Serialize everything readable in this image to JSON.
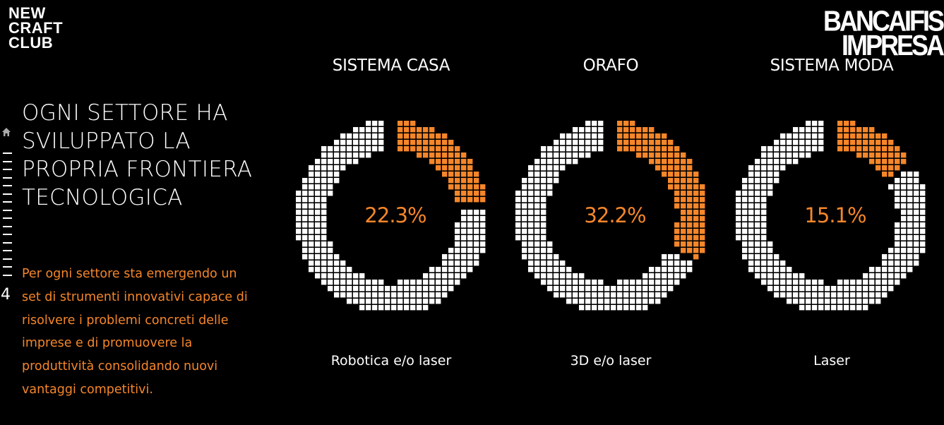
{
  "branding": {
    "left_logo_lines": [
      "NEW",
      "CRAFT",
      "CLUB"
    ],
    "right_logo_lines": [
      "BANCAIFIS",
      "IMPRESA"
    ]
  },
  "nav": {
    "page_number": "4"
  },
  "headline": "OGNI SETTORE HA SVILUPPATO LA PROPRIA FRONTIERA TECNOLOGICA",
  "description": "Per ogni settore sta emergendo un set di strumenti innovativi capace di risolvere i problemi concreti delle imprese e di promuovere la produttività consolidando nuovi vantaggi competitivi.",
  "colors": {
    "accent": "#f5862a",
    "ring_white": "#ffffff",
    "background": "#000000"
  },
  "chart_data": [
    {
      "type": "pie",
      "title": "SISTEMA CASA",
      "value_label": "22.3%",
      "value": 22.3,
      "subtitle": "Robotica e/o laser"
    },
    {
      "type": "pie",
      "title": "ORAFO",
      "value_label": "32.2%",
      "value": 32.2,
      "subtitle": "3D e/o laser"
    },
    {
      "type": "pie",
      "title": "SISTEMA MODA",
      "value_label": "15.1%",
      "value": 15.1,
      "subtitle": "Laser"
    }
  ]
}
